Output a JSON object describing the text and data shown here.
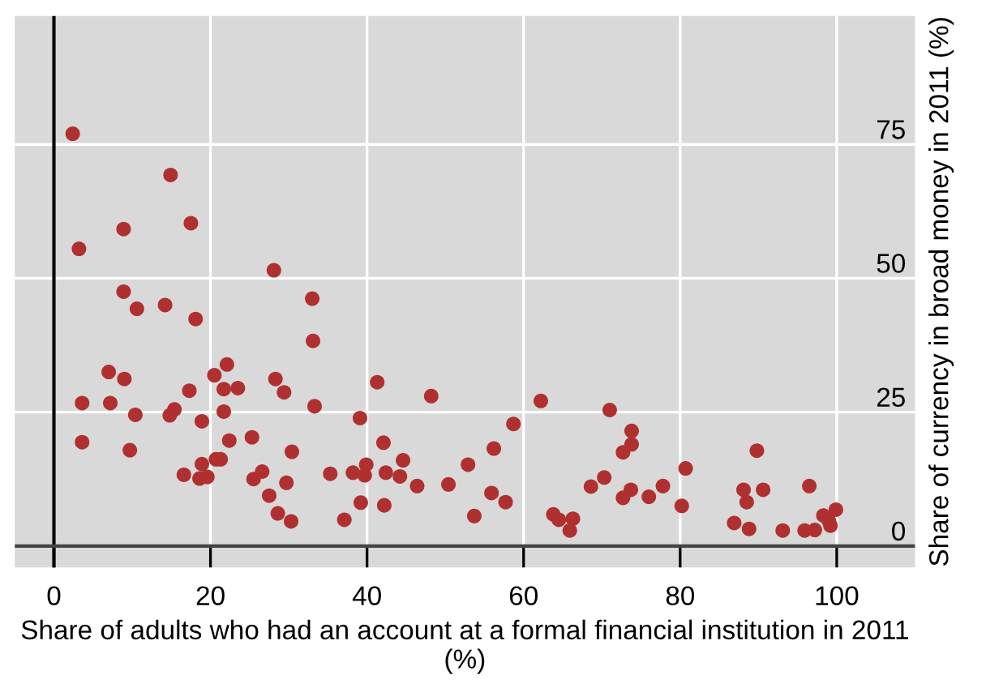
{
  "chart_data": {
    "type": "scatter",
    "xlabel": "Share of adults who had an account at a formal financial institution in 2011 (%)",
    "ylabel": "Share of currency in broad money in 2011 (%)",
    "xlim": [
      -5,
      110
    ],
    "ylim": [
      -4,
      99
    ],
    "xticks": [
      0,
      20,
      40,
      60,
      80,
      100
    ],
    "yticks": [
      0,
      25,
      50,
      75
    ],
    "grid": true,
    "marker": "circle",
    "ref_lines": [
      {
        "axis": "x",
        "value": 0,
        "color": "#000000"
      },
      {
        "axis": "y",
        "value": 0,
        "color": "#444444"
      }
    ],
    "series": [
      {
        "color": "#b03030",
        "x": [
          2.4,
          14.9,
          8.9,
          17.5,
          3.2,
          28.1,
          33.0,
          8.9,
          10.6,
          14.2,
          18.1,
          33.1,
          7.0,
          9.0,
          3.6,
          7.2,
          10.4,
          14.8,
          15.4,
          17.3,
          18.9,
          20.5,
          22.1,
          21.7,
          23.5,
          21.7,
          3.6,
          9.7,
          22.4,
          28.3,
          29.4,
          33.3,
          25.3,
          18.9,
          16.6,
          18.6,
          19.6,
          20.7,
          21.3,
          26.6,
          25.5,
          30.4,
          29.7,
          27.5,
          28.6,
          30.3,
          35.3,
          37.1,
          38.2,
          39.2,
          39.1,
          39.7,
          39.9,
          41.3,
          42.1,
          42.4,
          42.2,
          44.2,
          44.6,
          46.4,
          48.2,
          50.4,
          52.9,
          53.7,
          55.9,
          56.2,
          57.7,
          58.7,
          62.2,
          63.8,
          64.5,
          66.3,
          65.9,
          68.6,
          70.3,
          71.0,
          72.7,
          73.8,
          73.8,
          72.7,
          73.7,
          76.0,
          77.8,
          80.2,
          80.7,
          86.9,
          88.1,
          88.5,
          88.8,
          89.8,
          90.6,
          93.1,
          95.9,
          97.2,
          96.5,
          98.3,
          99.0,
          99.2,
          99.9
        ],
        "values": [
          77.0,
          69.3,
          59.2,
          60.3,
          55.5,
          51.5,
          46.2,
          47.5,
          44.3,
          45.0,
          42.4,
          38.3,
          32.5,
          31.2,
          26.7,
          26.7,
          24.5,
          24.4,
          25.5,
          29.0,
          23.3,
          31.9,
          33.9,
          29.3,
          29.5,
          25.1,
          19.4,
          17.9,
          19.7,
          31.2,
          28.7,
          26.1,
          20.3,
          15.3,
          13.3,
          12.6,
          12.9,
          16.2,
          16.2,
          13.9,
          12.5,
          17.6,
          11.8,
          9.4,
          6.1,
          4.6,
          13.5,
          4.9,
          13.7,
          8.1,
          23.9,
          13.2,
          15.2,
          30.6,
          19.3,
          13.7,
          7.6,
          13.0,
          16.0,
          11.2,
          28.0,
          11.5,
          15.2,
          5.6,
          9.9,
          18.2,
          8.2,
          22.8,
          27.1,
          5.9,
          4.9,
          5.1,
          2.9,
          11.1,
          12.8,
          25.4,
          17.5,
          19.0,
          21.5,
          9.0,
          10.5,
          9.2,
          11.2,
          7.5,
          14.5,
          4.3,
          10.5,
          8.2,
          3.2,
          17.8,
          10.5,
          2.9,
          2.9,
          3.0,
          11.2,
          5.7,
          4.7,
          3.8,
          6.8
        ]
      }
    ]
  }
}
